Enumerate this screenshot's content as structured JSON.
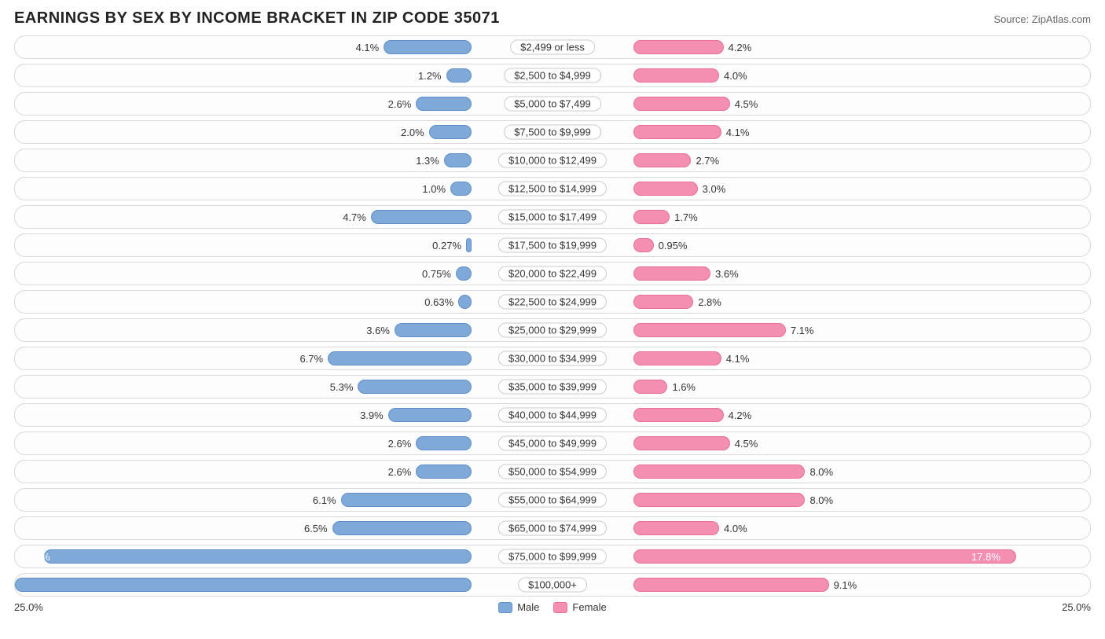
{
  "title": "EARNINGS BY SEX BY INCOME BRACKET IN ZIP CODE 35071",
  "source": "Source: ZipAtlas.com",
  "axis_max": 25.0,
  "axis_left_label": "25.0%",
  "axis_right_label": "25.0%",
  "colors": {
    "male_fill": "#7fa9d8",
    "male_border": "#5f8fc7",
    "female_fill": "#f48fb1",
    "female_border": "#e86f99",
    "row_border": "#d8d8d8",
    "row_bg": "#fdfdfd",
    "text": "#333333",
    "title_color": "#222222",
    "source_color": "#666666"
  },
  "legend": {
    "male": "Male",
    "female": "Female"
  },
  "rows": [
    {
      "label": "$2,499 or less",
      "male": 4.1,
      "male_txt": "4.1%",
      "female": 4.2,
      "female_txt": "4.2%"
    },
    {
      "label": "$2,500 to $4,999",
      "male": 1.2,
      "male_txt": "1.2%",
      "female": 4.0,
      "female_txt": "4.0%"
    },
    {
      "label": "$5,000 to $7,499",
      "male": 2.6,
      "male_txt": "2.6%",
      "female": 4.5,
      "female_txt": "4.5%"
    },
    {
      "label": "$7,500 to $9,999",
      "male": 2.0,
      "male_txt": "2.0%",
      "female": 4.1,
      "female_txt": "4.1%"
    },
    {
      "label": "$10,000 to $12,499",
      "male": 1.3,
      "male_txt": "1.3%",
      "female": 2.7,
      "female_txt": "2.7%"
    },
    {
      "label": "$12,500 to $14,999",
      "male": 1.0,
      "male_txt": "1.0%",
      "female": 3.0,
      "female_txt": "3.0%"
    },
    {
      "label": "$15,000 to $17,499",
      "male": 4.7,
      "male_txt": "4.7%",
      "female": 1.7,
      "female_txt": "1.7%"
    },
    {
      "label": "$17,500 to $19,999",
      "male": 0.27,
      "male_txt": "0.27%",
      "female": 0.95,
      "female_txt": "0.95%"
    },
    {
      "label": "$20,000 to $22,499",
      "male": 0.75,
      "male_txt": "0.75%",
      "female": 3.6,
      "female_txt": "3.6%"
    },
    {
      "label": "$22,500 to $24,999",
      "male": 0.63,
      "male_txt": "0.63%",
      "female": 2.8,
      "female_txt": "2.8%"
    },
    {
      "label": "$25,000 to $29,999",
      "male": 3.6,
      "male_txt": "3.6%",
      "female": 7.1,
      "female_txt": "7.1%"
    },
    {
      "label": "$30,000 to $34,999",
      "male": 6.7,
      "male_txt": "6.7%",
      "female": 4.1,
      "female_txt": "4.1%"
    },
    {
      "label": "$35,000 to $39,999",
      "male": 5.3,
      "male_txt": "5.3%",
      "female": 1.6,
      "female_txt": "1.6%"
    },
    {
      "label": "$40,000 to $44,999",
      "male": 3.9,
      "male_txt": "3.9%",
      "female": 4.2,
      "female_txt": "4.2%"
    },
    {
      "label": "$45,000 to $49,999",
      "male": 2.6,
      "male_txt": "2.6%",
      "female": 4.5,
      "female_txt": "4.5%"
    },
    {
      "label": "$50,000 to $54,999",
      "male": 2.6,
      "male_txt": "2.6%",
      "female": 8.0,
      "female_txt": "8.0%"
    },
    {
      "label": "$55,000 to $64,999",
      "male": 6.1,
      "male_txt": "6.1%",
      "female": 8.0,
      "female_txt": "8.0%"
    },
    {
      "label": "$65,000 to $74,999",
      "male": 6.5,
      "male_txt": "6.5%",
      "female": 4.0,
      "female_txt": "4.0%"
    },
    {
      "label": "$75,000 to $99,999",
      "male": 19.9,
      "male_txt": "19.9%",
      "female": 17.8,
      "female_txt": "17.8%"
    },
    {
      "label": "$100,000+",
      "male": 24.4,
      "male_txt": "24.4%",
      "female": 9.1,
      "female_txt": "9.1%"
    }
  ]
}
